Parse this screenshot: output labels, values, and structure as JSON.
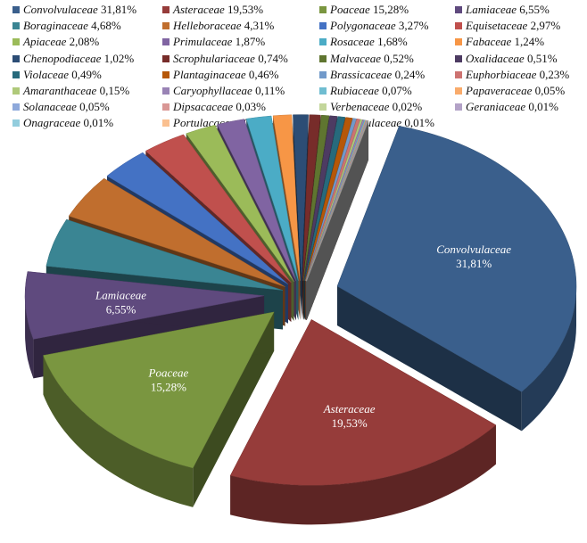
{
  "chart_data": {
    "type": "pie",
    "title": "",
    "legend_position": "top",
    "slices": [
      {
        "name": "Convolvulaceae",
        "value": 31.81,
        "label": "31,81%",
        "color": "#3a5f8c"
      },
      {
        "name": "Asteraceae",
        "value": 19.53,
        "label": "19,53%",
        "color": "#963c3a"
      },
      {
        "name": "Poaceae",
        "value": 15.28,
        "label": "15,28%",
        "color": "#7a9640"
      },
      {
        "name": "Lamiaceae",
        "value": 6.55,
        "label": "6,55%",
        "color": "#5f4a7e"
      },
      {
        "name": "Boraginaceae",
        "value": 4.68,
        "label": "4,68%",
        "color": "#3a8593"
      },
      {
        "name": "Helleboraceae",
        "value": 4.31,
        "label": "4,31%",
        "color": "#c06e2e"
      },
      {
        "name": "Polygonaceae",
        "value": 3.27,
        "label": "3,27%",
        "color": "#4472c4"
      },
      {
        "name": "Equisetaceae",
        "value": 2.97,
        "label": "2,97%",
        "color": "#c0504d"
      },
      {
        "name": "Apiaceae",
        "value": 2.08,
        "label": "2,08%",
        "color": "#9bbb59"
      },
      {
        "name": "Primulaceae",
        "value": 1.87,
        "label": "1,87%",
        "color": "#8064a2"
      },
      {
        "name": "Rosaceae",
        "value": 1.68,
        "label": "1,68%",
        "color": "#4bacc6"
      },
      {
        "name": "Fabaceae",
        "value": 1.24,
        "label": "1,24%",
        "color": "#f79646"
      },
      {
        "name": "Chenopodiaceae",
        "value": 1.02,
        "label": "1,02%",
        "color": "#2c4d75"
      },
      {
        "name": "Scrophulariaceae",
        "value": 0.74,
        "label": "0,74%",
        "color": "#772c2a"
      },
      {
        "name": "Malvaceae",
        "value": 0.52,
        "label": "0,52%",
        "color": "#5f7530"
      },
      {
        "name": "Oxalidaceae",
        "value": 0.51,
        "label": "0,51%",
        "color": "#4d3b62"
      },
      {
        "name": "Violaceae",
        "value": 0.49,
        "label": "0,49%",
        "color": "#276a7c"
      },
      {
        "name": "Plantaginaceae",
        "value": 0.46,
        "label": "0,46%",
        "color": "#b65708"
      },
      {
        "name": "Brassicaceae",
        "value": 0.24,
        "label": "0,24%",
        "color": "#729aca"
      },
      {
        "name": "Euphorbiaceae",
        "value": 0.23,
        "label": "0,23%",
        "color": "#cd7371"
      },
      {
        "name": "Amaranthaceae",
        "value": 0.15,
        "label": "0,15%",
        "color": "#afc97a"
      },
      {
        "name": "Caryophyllaceae",
        "value": 0.11,
        "label": "0,11%",
        "color": "#9983b5"
      },
      {
        "name": "Rubiaceae",
        "value": 0.07,
        "label": "0,07%",
        "color": "#6fbdd1"
      },
      {
        "name": "Papaveraceae",
        "value": 0.05,
        "label": "0,05%",
        "color": "#f9ab6b"
      },
      {
        "name": "Solanaceae",
        "value": 0.05,
        "label": "0,05%",
        "color": "#8ea9db"
      },
      {
        "name": "Dipsacaceae",
        "value": 0.03,
        "label": "0,03%",
        "color": "#d99795"
      },
      {
        "name": "Verbenaceae",
        "value": 0.02,
        "label": "0,02%",
        "color": "#c3d69b"
      },
      {
        "name": "Geraniaceae",
        "value": 0.01,
        "label": "0,01%",
        "color": "#b3a2c7"
      },
      {
        "name": "Onagraceae",
        "value": 0.01,
        "label": "0,01%",
        "color": "#93cddd"
      },
      {
        "name": "Portulacaceae",
        "value": 0.01,
        "label": "0,01%",
        "color": "#fac090"
      },
      {
        "name": "Ranunculaceae",
        "value": 0.01,
        "label": "0,01%",
        "color": "#a6a6a6"
      }
    ],
    "data_labels": [
      "Convolvulaceae",
      "Asteraceae",
      "Poaceae",
      "Lamiaceae"
    ]
  }
}
